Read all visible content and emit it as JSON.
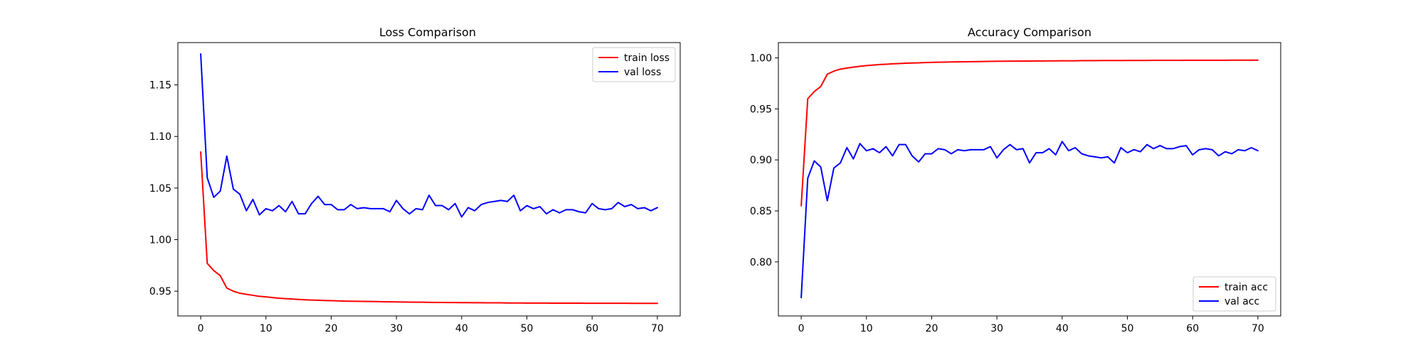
{
  "chart_data": [
    {
      "type": "line",
      "title": "Loss Comparison",
      "xlabel": "",
      "ylabel": "",
      "xlim": [
        -3.5,
        73.5
      ],
      "ylim": [
        0.926,
        1.191
      ],
      "xticks": [
        0,
        10,
        20,
        30,
        40,
        50,
        60,
        70
      ],
      "yticks": [
        0.95,
        1.0,
        1.05,
        1.1,
        1.15
      ],
      "ytick_labels": [
        "0.95",
        "1.00",
        "1.05",
        "1.10",
        "1.15"
      ],
      "legend": "top-right",
      "grid": false,
      "series": [
        {
          "name": "train loss",
          "color": "#ff0000",
          "values": [
            1.085,
            0.977,
            0.97,
            0.965,
            0.953,
            0.95,
            0.948,
            0.947,
            0.946,
            0.945,
            0.9445,
            0.9438,
            0.9432,
            0.9428,
            0.9424,
            0.942,
            0.9417,
            0.9414,
            0.9412,
            0.941,
            0.9408,
            0.9406,
            0.9404,
            0.9403,
            0.9402,
            0.9401,
            0.94,
            0.9399,
            0.9398,
            0.9397,
            0.9396,
            0.9395,
            0.9394,
            0.9393,
            0.9393,
            0.9392,
            0.9391,
            0.9391,
            0.939,
            0.939,
            0.9389,
            0.9389,
            0.9388,
            0.9388,
            0.9387,
            0.9387,
            0.9387,
            0.9386,
            0.9386,
            0.9386,
            0.9385,
            0.9385,
            0.9385,
            0.9385,
            0.9384,
            0.9384,
            0.9384,
            0.9384,
            0.9384,
            0.9383,
            0.9383,
            0.9383,
            0.9383,
            0.9383,
            0.9383,
            0.9383,
            0.9382,
            0.9382,
            0.9382,
            0.9382,
            0.9382
          ]
        },
        {
          "name": "val loss",
          "color": "#0000ff",
          "values": [
            1.18,
            1.06,
            1.041,
            1.047,
            1.081,
            1.049,
            1.044,
            1.028,
            1.039,
            1.024,
            1.03,
            1.028,
            1.033,
            1.027,
            1.037,
            1.025,
            1.025,
            1.035,
            1.042,
            1.034,
            1.034,
            1.029,
            1.029,
            1.034,
            1.03,
            1.031,
            1.03,
            1.03,
            1.03,
            1.027,
            1.038,
            1.03,
            1.025,
            1.03,
            1.029,
            1.043,
            1.033,
            1.033,
            1.029,
            1.035,
            1.022,
            1.031,
            1.028,
            1.034,
            1.036,
            1.037,
            1.038,
            1.037,
            1.043,
            1.028,
            1.033,
            1.03,
            1.032,
            1.025,
            1.029,
            1.026,
            1.029,
            1.029,
            1.027,
            1.026,
            1.035,
            1.03,
            1.029,
            1.03,
            1.036,
            1.032,
            1.034,
            1.03,
            1.031,
            1.028,
            1.031
          ]
        }
      ]
    },
    {
      "type": "line",
      "title": "Accuracy Comparison",
      "xlabel": "",
      "ylabel": "",
      "xlim": [
        -3.5,
        73.5
      ],
      "ylim": [
        0.747,
        1.015
      ],
      "xticks": [
        0,
        10,
        20,
        30,
        40,
        50,
        60,
        70
      ],
      "yticks": [
        0.8,
        0.85,
        0.9,
        0.95,
        1.0
      ],
      "ytick_labels": [
        "0.80",
        "0.85",
        "0.90",
        "0.95",
        "1.00"
      ],
      "legend": "bottom-right",
      "grid": false,
      "series": [
        {
          "name": "train acc",
          "color": "#ff0000",
          "values": [
            0.855,
            0.96,
            0.967,
            0.972,
            0.984,
            0.987,
            0.989,
            0.99,
            0.991,
            0.9918,
            0.9925,
            0.993,
            0.9935,
            0.9938,
            0.9942,
            0.9945,
            0.9948,
            0.995,
            0.9952,
            0.9954,
            0.9956,
            0.9958,
            0.9959,
            0.996,
            0.9961,
            0.9962,
            0.9963,
            0.9964,
            0.9965,
            0.9966,
            0.9967,
            0.9967,
            0.9968,
            0.9968,
            0.9969,
            0.9969,
            0.997,
            0.997,
            0.9971,
            0.9971,
            0.9972,
            0.9972,
            0.9972,
            0.9973,
            0.9973,
            0.9973,
            0.9974,
            0.9974,
            0.9974,
            0.9974,
            0.9975,
            0.9975,
            0.9975,
            0.9975,
            0.9976,
            0.9976,
            0.9976,
            0.9976,
            0.9976,
            0.9977,
            0.9977,
            0.9977,
            0.9977,
            0.9977,
            0.9977,
            0.9977,
            0.9978,
            0.9978,
            0.9978,
            0.9978,
            0.9978
          ]
        },
        {
          "name": "val acc",
          "color": "#0000ff",
          "values": [
            0.765,
            0.882,
            0.899,
            0.893,
            0.86,
            0.892,
            0.897,
            0.912,
            0.901,
            0.916,
            0.909,
            0.911,
            0.907,
            0.913,
            0.904,
            0.915,
            0.915,
            0.904,
            0.898,
            0.906,
            0.906,
            0.911,
            0.91,
            0.906,
            0.91,
            0.909,
            0.91,
            0.91,
            0.91,
            0.913,
            0.902,
            0.91,
            0.915,
            0.91,
            0.911,
            0.897,
            0.907,
            0.907,
            0.911,
            0.905,
            0.918,
            0.909,
            0.912,
            0.906,
            0.904,
            0.903,
            0.902,
            0.903,
            0.897,
            0.912,
            0.907,
            0.91,
            0.908,
            0.915,
            0.911,
            0.914,
            0.911,
            0.911,
            0.913,
            0.914,
            0.905,
            0.91,
            0.911,
            0.91,
            0.904,
            0.908,
            0.906,
            0.91,
            0.909,
            0.912,
            0.909
          ]
        }
      ]
    }
  ]
}
